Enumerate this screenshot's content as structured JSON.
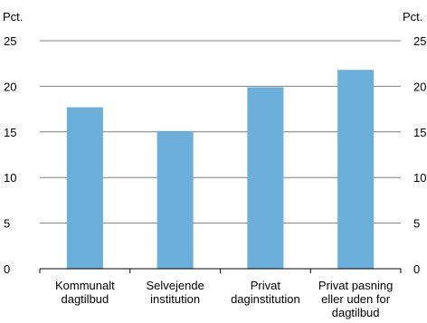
{
  "chart_data": {
    "type": "bar",
    "unit_left": "Pct.",
    "unit_right": "Pct.",
    "categories": [
      [
        "Kommunalt",
        "dagtilbud"
      ],
      [
        "Selvejende",
        "institution"
      ],
      [
        "Privat",
        "daginstitution"
      ],
      [
        "Privat pasning",
        "eller uden for",
        "dagtilbud"
      ]
    ],
    "values": [
      17.7,
      15.1,
      19.9,
      21.8
    ],
    "yticks": [
      "0",
      "5",
      "10",
      "15",
      "20",
      "25"
    ],
    "ylim": [
      0,
      25
    ],
    "grid": true,
    "bar_color": "#6aaed9",
    "grid_color": "#7f7f7f"
  }
}
